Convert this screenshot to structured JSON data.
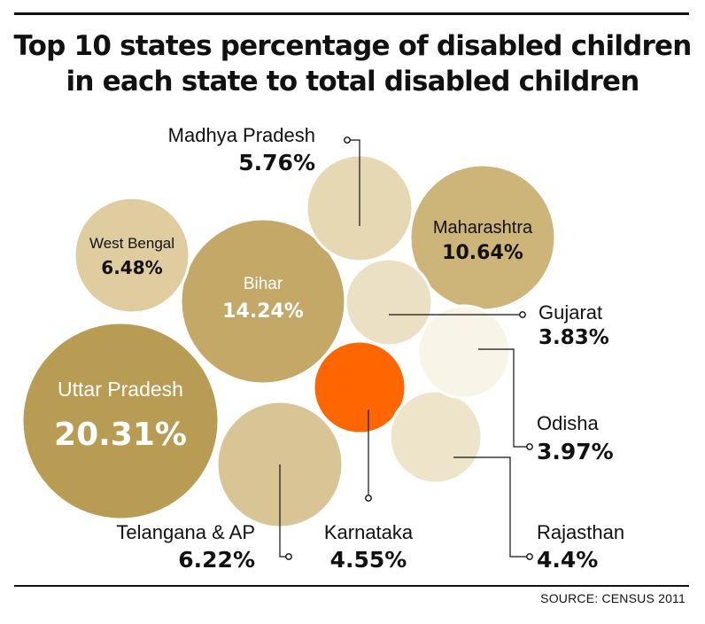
{
  "title_line1": "Top 10 states percentage of disabled children",
  "title_line2": "in each state  to total disabled children",
  "source": "SOURCE: CENSUS 2011",
  "chart_data": {
    "type": "bubble",
    "title": "Top 10 states percentage of disabled children in each state  to total disabled children",
    "unit": "%",
    "series": [
      {
        "name": "Uttar Pradesh",
        "value": 20.31,
        "label": "20.31%",
        "color": "#b89c54"
      },
      {
        "name": "Bihar",
        "value": 14.24,
        "label": "14.24%",
        "color": "#c3a868"
      },
      {
        "name": "Maharashtra",
        "value": 10.64,
        "label": "10.64%",
        "color": "#cdb479"
      },
      {
        "name": "West Bengal",
        "value": 6.48,
        "label": "6.48%",
        "color": "#dfcd9f"
      },
      {
        "name": "Telangana & AP",
        "value": 6.22,
        "label": "6.22%",
        "color": "#d8c494"
      },
      {
        "name": "Madhya Pradesh",
        "value": 5.76,
        "label": "5.76%",
        "color": "#e5d8b3"
      },
      {
        "name": "Karnataka",
        "value": 4.55,
        "label": "4.55%",
        "color": "#ff6600"
      },
      {
        "name": "Rajasthan",
        "value": 4.4,
        "label": "4.4%",
        "color": "#eee4c9"
      },
      {
        "name": "Odisha",
        "value": 3.97,
        "label": "3.97%",
        "color": "#f8f4e8"
      },
      {
        "name": "Gujarat",
        "value": 3.83,
        "label": "3.83%",
        "color": "#ebe0c3"
      }
    ]
  }
}
